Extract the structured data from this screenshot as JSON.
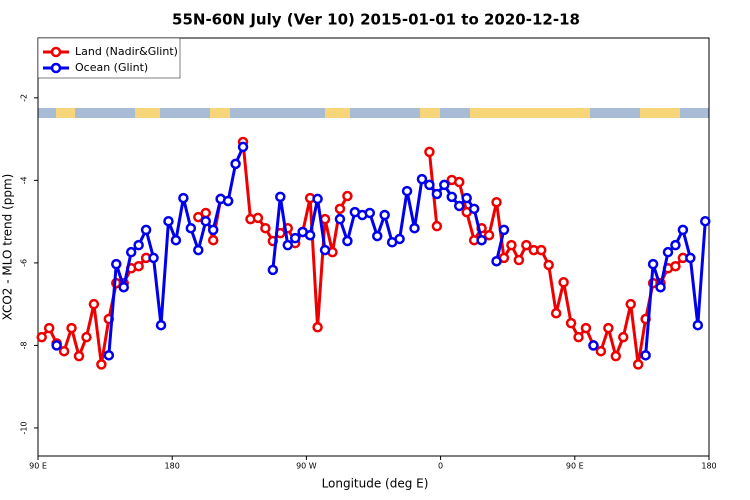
{
  "chart_data": {
    "type": "line",
    "title": "55N-60N July (Ver 10)   2015-01-01 to 2020-12-18",
    "x_label": "Longitude (deg E)",
    "y_label": "XCO2 - MLO trend (ppm)",
    "x": [
      92.5,
      97.5,
      102.5,
      107.5,
      112.5,
      117.5,
      122.5,
      127.5,
      132.5,
      137.5,
      142.5,
      147.5,
      152.5,
      157.5,
      162.5,
      167.5,
      172.5,
      177.5,
      182.5,
      187.5,
      192.5,
      197.5,
      202.5,
      207.5,
      212.5,
      217.5,
      222.5,
      227.5,
      232.5,
      237.5,
      242.5,
      247.5,
      252.5,
      257.5,
      262.5,
      267.5,
      272.5,
      277.5,
      282.5,
      287.5,
      292.5,
      297.5,
      302.5,
      307.5,
      312.5,
      317.5,
      322.5,
      327.5,
      332.5,
      337.5,
      342.5,
      347.5,
      352.5,
      357.5,
      362.5,
      367.5,
      372.5,
      377.5,
      382.5,
      387.5,
      392.5,
      397.5,
      402.5,
      407.5,
      412.5,
      417.5,
      422.5,
      427.5,
      432.5,
      437.5,
      442.5,
      447.5,
      452.5,
      457.5,
      462.5,
      467.5,
      472.5,
      477.5,
      482.5,
      487.5,
      492.5,
      497.5,
      502.5,
      507.5,
      512.5,
      517.5,
      522.5,
      527.5,
      532.5,
      537.5
    ],
    "series": [
      {
        "name": "Land (Nadir&Glint)",
        "color": "#ee0000",
        "values": [
          -7.8,
          -7.58,
          -7.95,
          -8.14,
          -7.58,
          -8.26,
          -7.8,
          -7.0,
          -8.46,
          -7.36,
          -6.49,
          -6.49,
          -6.13,
          -6.08,
          -5.88,
          null,
          null,
          null,
          null,
          null,
          null,
          -4.89,
          -4.79,
          -5.45,
          -4.45,
          -4.5,
          null,
          -3.07,
          -4.94,
          -4.91,
          -5.16,
          -5.47,
          -5.28,
          -5.16,
          -5.52,
          -5.25,
          -4.43,
          -7.56,
          -4.94,
          -5.74,
          -4.69,
          -4.38,
          null,
          null,
          null,
          null,
          null,
          null,
          null,
          null,
          null,
          null,
          -3.31,
          -5.11,
          null,
          -3.99,
          -4.04,
          -4.77,
          -5.45,
          -5.16,
          -5.33,
          -4.53,
          -5.88,
          -5.57,
          -5.93,
          -5.57,
          -5.69,
          -5.69,
          -6.05,
          -7.22,
          -6.47,
          -7.46,
          -7.8,
          -7.58,
          -8.0,
          -8.14,
          -7.58,
          -8.26,
          -7.8,
          -7.0,
          -8.46,
          -7.36,
          -6.49,
          -6.49,
          -6.13,
          -6.08,
          -5.88,
          null,
          null,
          null
        ]
      },
      {
        "name": "Ocean (Glint)",
        "color": "#0000ee",
        "values": [
          null,
          null,
          -8.0,
          null,
          null,
          null,
          null,
          null,
          null,
          -8.24,
          -6.03,
          -6.59,
          -5.74,
          -5.57,
          -5.2,
          -5.88,
          -7.51,
          -4.99,
          -5.45,
          -4.43,
          -5.16,
          -5.69,
          -4.99,
          -5.2,
          -4.45,
          -4.5,
          -3.6,
          -3.19,
          null,
          null,
          null,
          -6.17,
          -4.4,
          -5.57,
          -5.4,
          -5.25,
          -5.33,
          -4.45,
          -5.69,
          null,
          -4.94,
          -5.47,
          -4.77,
          -4.84,
          -4.79,
          -5.35,
          -4.84,
          -5.5,
          -5.42,
          -4.26,
          -5.16,
          -3.97,
          -4.11,
          -4.33,
          -4.11,
          -4.4,
          -4.62,
          -4.43,
          -4.69,
          -5.45,
          null,
          -5.96,
          -5.2,
          null,
          null,
          null,
          null,
          null,
          null,
          null,
          null,
          null,
          null,
          null,
          -8.0,
          null,
          null,
          null,
          null,
          null,
          null,
          -8.24,
          -6.03,
          -6.59,
          -5.74,
          -5.57,
          -5.2,
          -5.88,
          -7.51,
          -4.99
        ]
      }
    ],
    "xlim": [
      90,
      540
    ],
    "ylim": [
      -10.68,
      -0.55
    ],
    "xticks": [
      {
        "value": 90,
        "label": "90 E"
      },
      180,
      {
        "value": 270,
        "label": "90 W"
      },
      {
        "value": 360,
        "label": "0"
      },
      {
        "value": 450,
        "label": "90 E"
      },
      {
        "value": 540,
        "label": "180"
      }
    ],
    "yticks": [
      -10,
      -8,
      -6,
      -4,
      -2
    ],
    "legend": "upper left"
  }
}
